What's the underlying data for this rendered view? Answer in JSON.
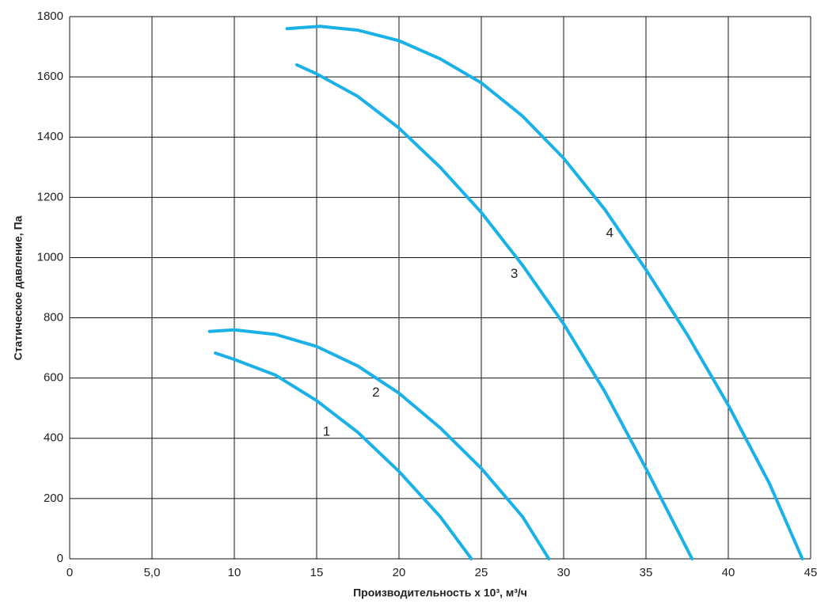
{
  "chart_data": {
    "type": "line",
    "x_label": "Производительность x 10³, м³/ч",
    "y_label": "Статическое давление, Па",
    "xlim": [
      0,
      45
    ],
    "xticks": [
      0,
      {
        "value": 5,
        "label": "5,0"
      },
      10,
      15,
      20,
      25,
      30,
      35,
      40,
      45
    ],
    "ylim": [
      0,
      1800
    ],
    "yticks": [
      0,
      200,
      400,
      600,
      800,
      1000,
      1200,
      1400,
      1600,
      1800
    ],
    "grid": true,
    "series": [
      {
        "name": "1",
        "color": "#1ab0e8",
        "x": [
          8.85,
          10,
          12.5,
          15,
          17.5,
          20,
          22.5,
          24.4
        ],
        "values": [
          683,
          662,
          610,
          525,
          420,
          290,
          140,
          0
        ]
      },
      {
        "name": "2",
        "color": "#1ab0e8",
        "x": [
          8.5,
          10,
          12.5,
          15,
          17.5,
          20,
          22.5,
          25,
          27.5,
          29.1
        ],
        "values": [
          755,
          760,
          745,
          705,
          640,
          550,
          435,
          300,
          140,
          0
        ]
      },
      {
        "name": "3",
        "color": "#1ab0e8",
        "x": [
          13.8,
          15,
          17.5,
          20,
          22.5,
          25,
          27.5,
          30,
          32.5,
          35,
          37.8
        ],
        "values": [
          1640,
          1610,
          1535,
          1430,
          1300,
          1150,
          975,
          780,
          555,
          300,
          0
        ]
      },
      {
        "name": "4",
        "color": "#1ab0e8",
        "x": [
          13.2,
          15.2,
          17.5,
          20,
          22.5,
          25,
          27.5,
          30,
          32.5,
          35,
          37.5,
          40,
          42.5,
          44.5
        ],
        "values": [
          1760,
          1768,
          1755,
          1720,
          1660,
          1580,
          1470,
          1330,
          1160,
          960,
          745,
          510,
          250,
          0
        ]
      }
    ]
  }
}
